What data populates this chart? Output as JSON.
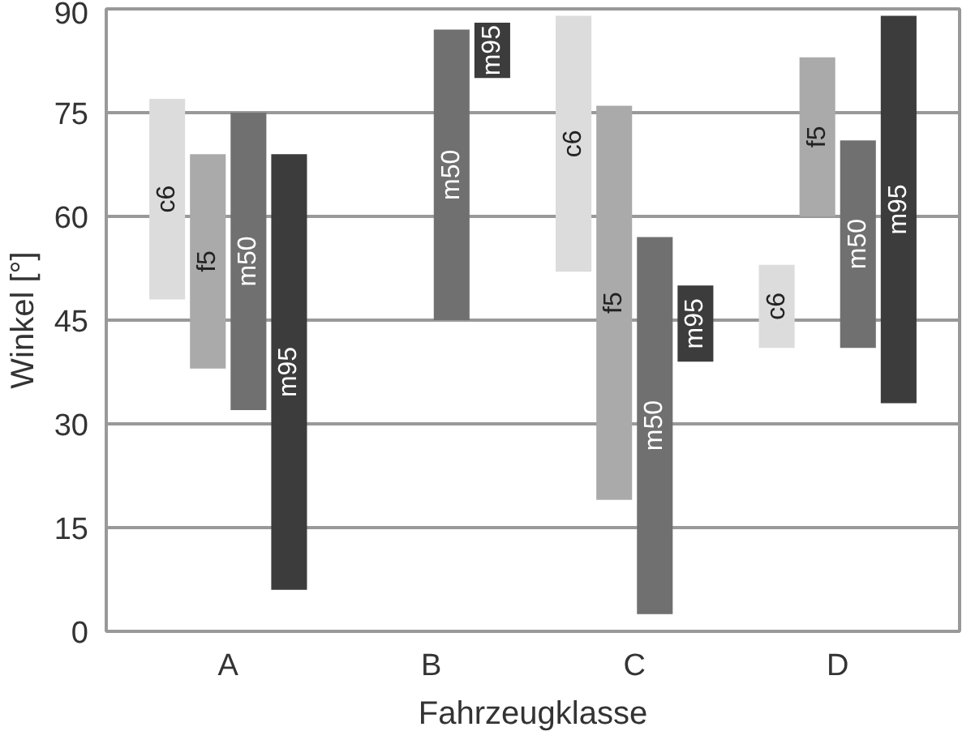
{
  "chart_data": {
    "type": "bar",
    "xlabel": "Fahrzeugklasse",
    "ylabel": "Winkel [°]",
    "categories": [
      "A",
      "B",
      "C",
      "D"
    ],
    "series": [
      {
        "name": "c6",
        "color": "#dcdcdc",
        "base": [
          48,
          null,
          52,
          41
        ],
        "values": [
          29,
          null,
          37,
          12
        ]
      },
      {
        "name": "f5",
        "color": "#aaaaaa",
        "base": [
          38,
          null,
          19,
          60
        ],
        "values": [
          31,
          null,
          57,
          23
        ]
      },
      {
        "name": "m50",
        "color": "#707070",
        "base": [
          32,
          45,
          2.5,
          41
        ],
        "values": [
          43,
          42,
          54.5,
          30
        ]
      },
      {
        "name": "m95",
        "color": "#3c3c3c",
        "base": [
          6,
          80,
          39,
          33
        ],
        "values": [
          63,
          8,
          11,
          56
        ]
      }
    ],
    "ylim": [
      0,
      90
    ],
    "yticks": [
      0,
      15,
      30,
      45,
      60,
      75,
      90
    ],
    "grid": "y"
  }
}
